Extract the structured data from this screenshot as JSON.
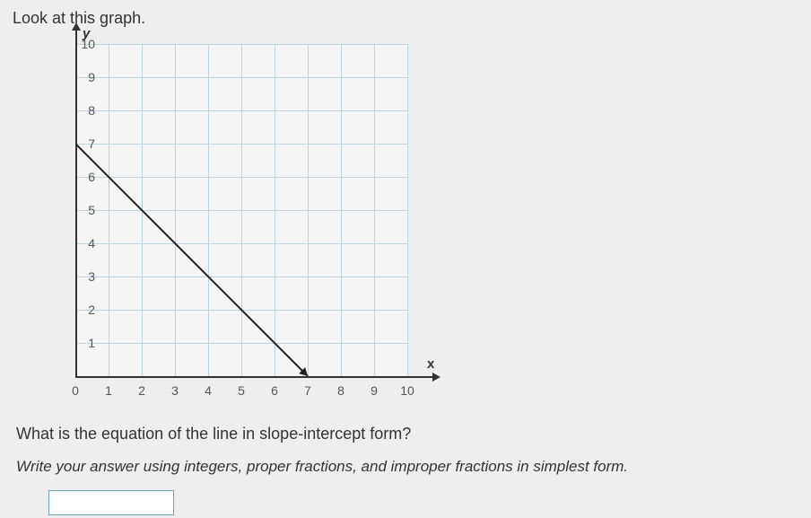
{
  "prompt": "Look at this graph.",
  "question": "What is the equation of the line in slope-intercept form?",
  "instruction": "Write your answer using integers, proper fractions, and improper fractions in simplest form.",
  "chart": {
    "type": "line",
    "x_axis_label": "x",
    "y_axis_label": "y",
    "xlim": [
      0,
      10
    ],
    "ylim": [
      0,
      10
    ],
    "xtick_step": 1,
    "ytick_step": 1,
    "x_ticks": [
      0,
      1,
      2,
      3,
      4,
      5,
      6,
      7,
      8,
      9,
      10
    ],
    "y_ticks": [
      1,
      2,
      3,
      4,
      5,
      6,
      7,
      8,
      9,
      10
    ],
    "grid_color": "#bcd3e0",
    "background_color": "#f5f5f5",
    "axis_color": "#333333",
    "line_color": "#222222",
    "line_width": 2,
    "line_points": [
      {
        "x": 0,
        "y": 7
      },
      {
        "x": 7,
        "y": 0
      }
    ],
    "arrow_end": true
  },
  "answer_value": ""
}
